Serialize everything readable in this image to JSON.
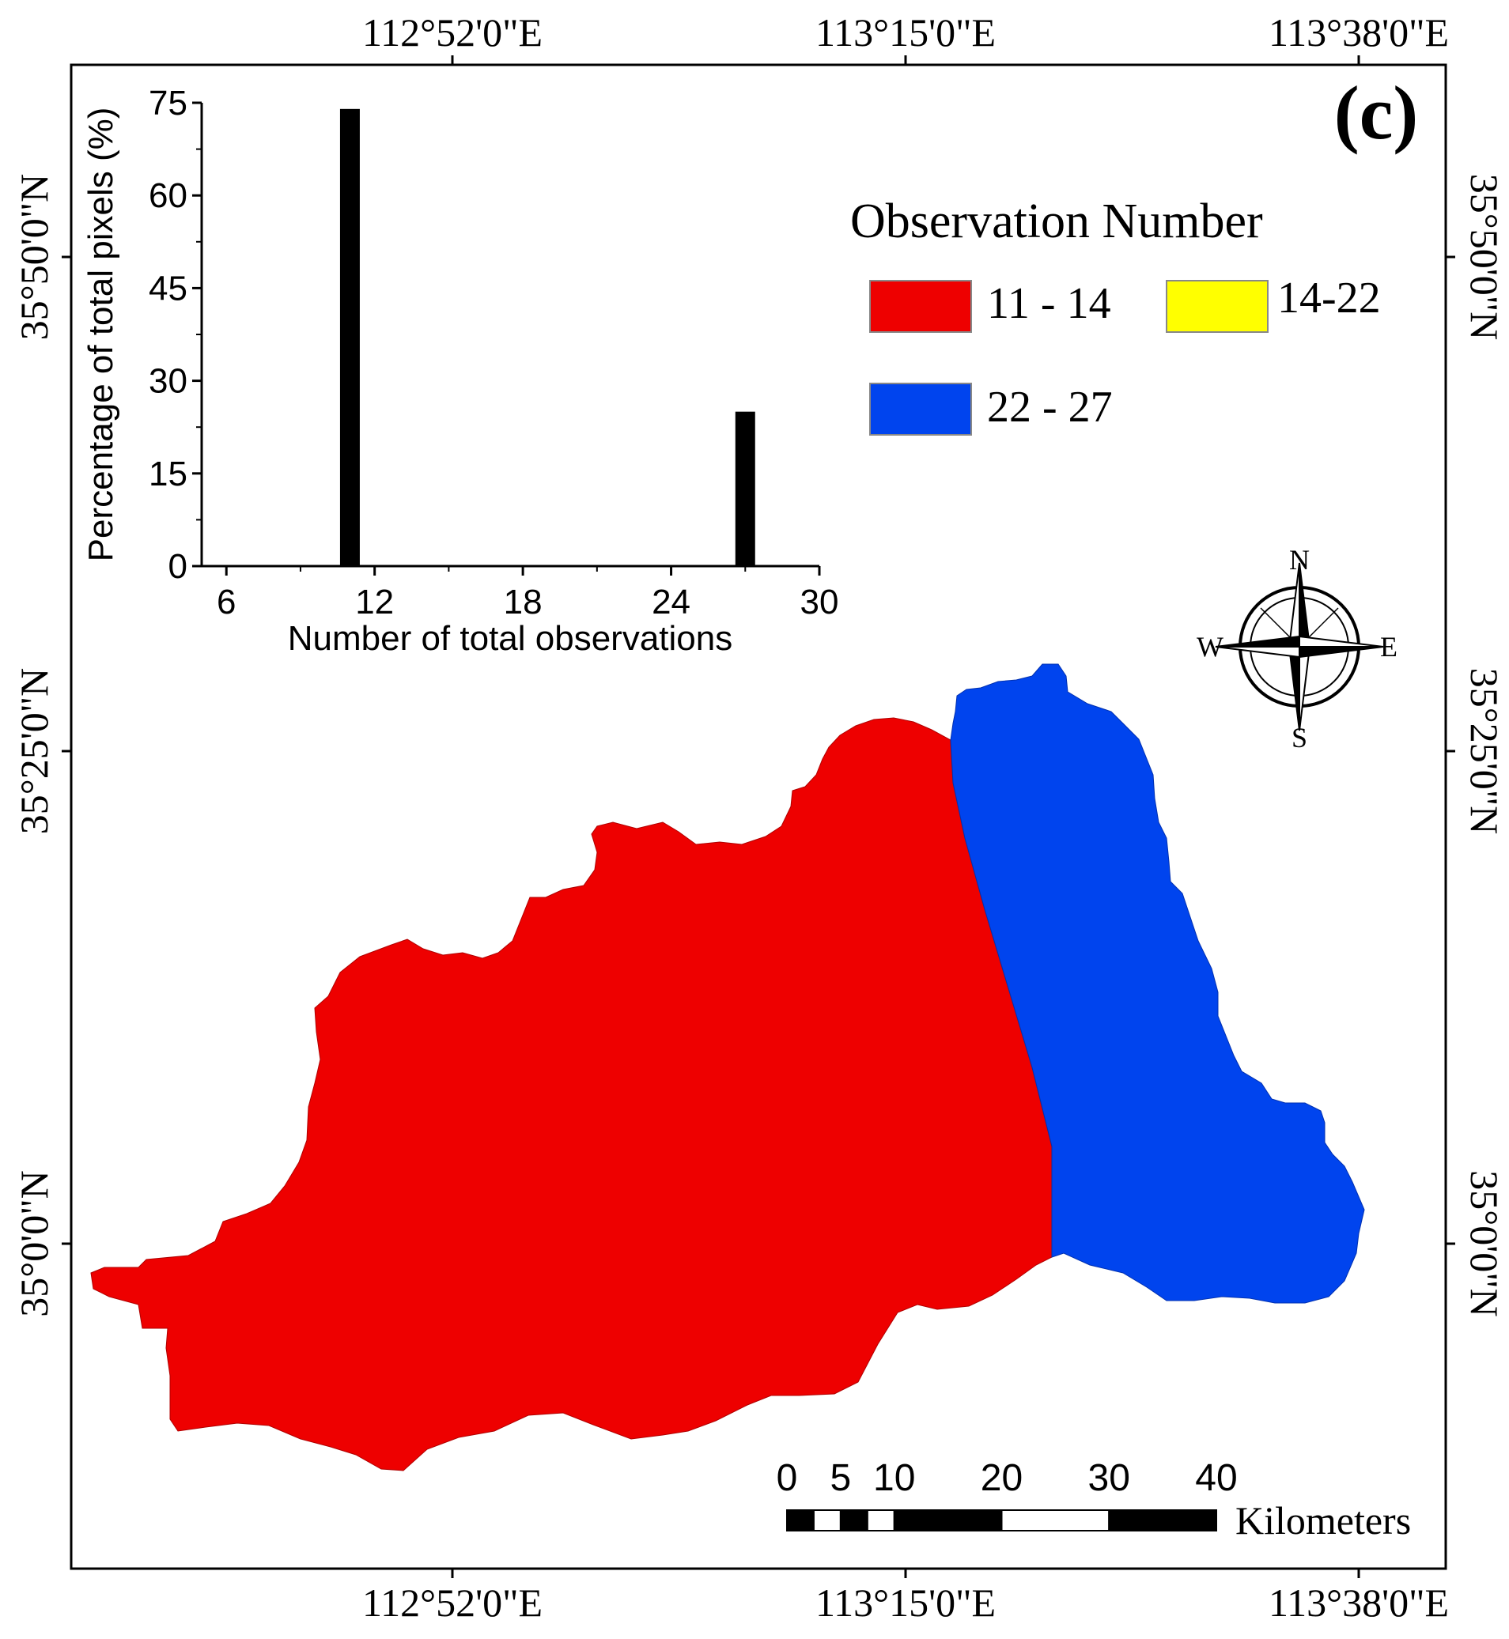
{
  "panel_label": "(c)",
  "coordinates": {
    "longitudes": [
      "112°52'0\"E",
      "113°15'0\"E",
      "113°38'0\"E"
    ],
    "latitudes": [
      "35°50'0\"N",
      "35°25'0\"N",
      "35°0'0\"N"
    ]
  },
  "legend": {
    "title": "Observation Number",
    "items": [
      {
        "label": "11 - 14",
        "color": "#ee0000"
      },
      {
        "label": "14-22",
        "color": "#ffff00"
      },
      {
        "label": "22 - 27",
        "color": "#0044ee"
      }
    ]
  },
  "north_arrow": {
    "n": "N",
    "s": "S",
    "e": "E",
    "w": "W"
  },
  "scale_bar": {
    "ticks": [
      "0",
      "5",
      "10",
      "20",
      "30",
      "40"
    ],
    "tick_values": [
      0,
      5,
      10,
      20,
      30,
      40
    ],
    "unit": "Kilometers"
  },
  "regions": [
    {
      "name": "west",
      "class": "11 - 14",
      "color": "#ee0000"
    },
    {
      "name": "east",
      "class": "22 - 27",
      "color": "#0044ee"
    }
  ],
  "chart_data": {
    "type": "bar",
    "x": [
      11,
      27
    ],
    "values": [
      74,
      25
    ],
    "xlabel": "Number of total observations",
    "ylabel": "Percentage of total pixels (%)",
    "xlim": [
      5,
      30
    ],
    "ylim": [
      0,
      75
    ],
    "xticks": [
      6,
      12,
      18,
      24,
      30
    ],
    "yticks": [
      0,
      15,
      30,
      45,
      60,
      75
    ],
    "bar_color": "#000000"
  }
}
